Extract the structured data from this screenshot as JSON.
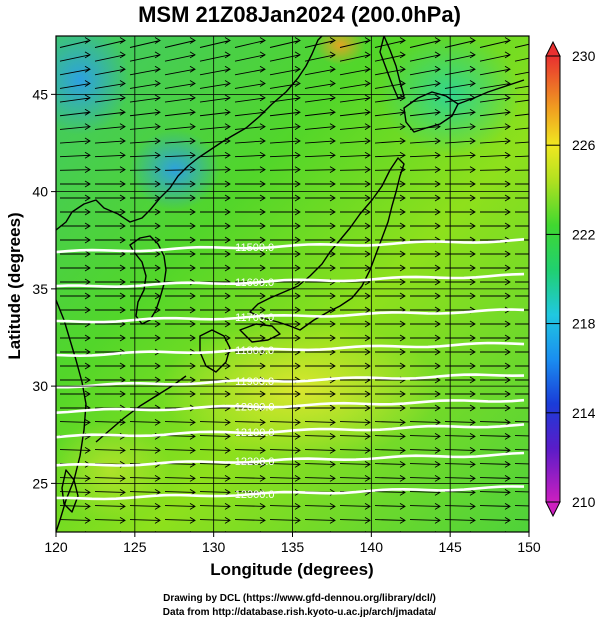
{
  "title": "MSM 21Z08Jan2024 (200.0hPa)",
  "axes": {
    "xlabel": "Longitude (degrees)",
    "ylabel": "Latitude  (degrees)",
    "xlim": [
      120,
      150
    ],
    "ylim": [
      22.5,
      48
    ],
    "xticks": [
      120,
      125,
      130,
      135,
      140,
      145,
      150
    ],
    "yticks": [
      25,
      30,
      35,
      40,
      45
    ]
  },
  "colorbar": {
    "min": 210,
    "max": 230,
    "tick_labels": [
      "230",
      "226",
      "222",
      "218",
      "214",
      "210"
    ],
    "tick_values": [
      230,
      226,
      222,
      218,
      214,
      210
    ]
  },
  "contours": [
    {
      "label": "11500.0",
      "lat": 37.2,
      "label_lon": 132.6
    },
    {
      "label": "11600.0",
      "lat": 35.4,
      "label_lon": 132.6
    },
    {
      "label": "11700.0",
      "lat": 33.6,
      "label_lon": 132.6
    },
    {
      "label": "11800.0",
      "lat": 31.9,
      "label_lon": 132.6
    },
    {
      "label": "11900.0",
      "lat": 30.3,
      "label_lon": 132.6
    },
    {
      "label": "12000.0",
      "lat": 29.0,
      "label_lon": 132.6
    },
    {
      "label": "12100.0",
      "lat": 27.7,
      "label_lon": 132.6
    },
    {
      "label": "12200.0",
      "lat": 26.2,
      "label_lon": 132.6
    },
    {
      "label": "12300.0",
      "lat": 24.5,
      "label_lon": 132.6
    }
  ],
  "credits": {
    "line1": "Drawing by DCL (https://www.gfd-dennou.org/library/dcl/)",
    "line2": "Data from http://database.rish.kyoto-u.ac.jp/arch/jmadata/"
  }
}
